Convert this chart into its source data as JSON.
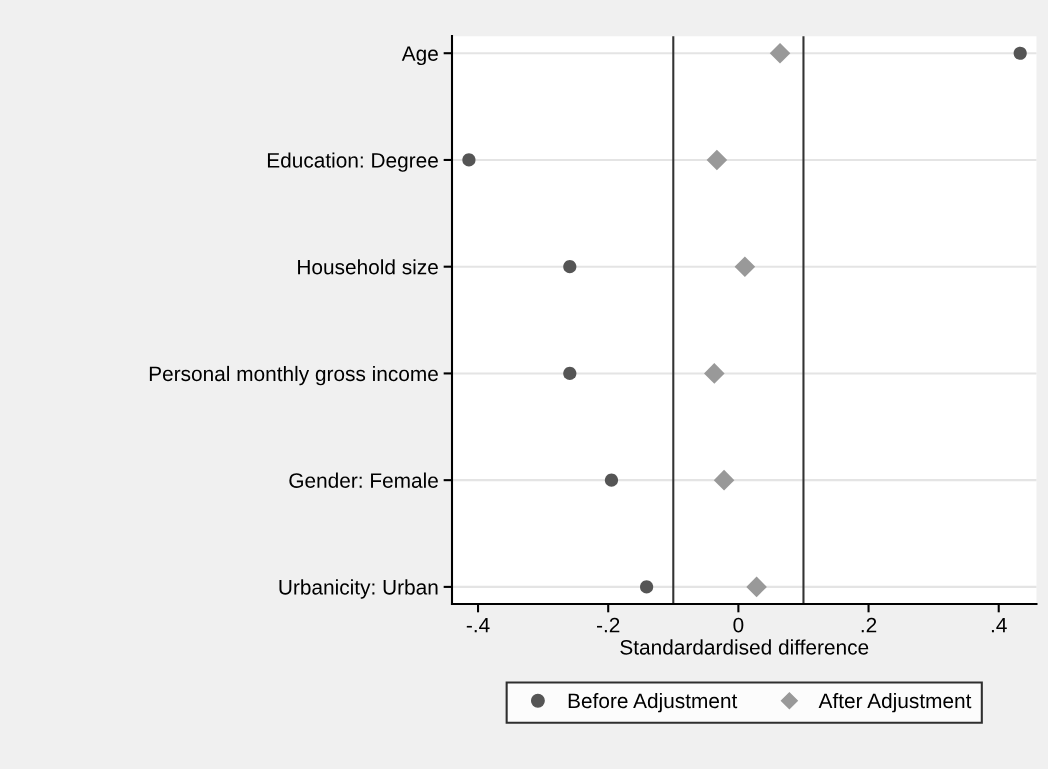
{
  "chart_data": {
    "type": "scatter",
    "orientation": "horizontal",
    "xlabel": "Standardardised difference",
    "categories": [
      "Age",
      "Education: Degree",
      "Household size",
      "Personal monthly gross income",
      "Gender: Female",
      "Urbanicity: Urban"
    ],
    "series": [
      {
        "name": "Before Adjustment",
        "color": "#555555",
        "marker": "circle",
        "values": [
          0.433,
          -0.414,
          -0.259,
          -0.259,
          -0.195,
          -0.141
        ]
      },
      {
        "name": "After Adjustment",
        "color": "#999999",
        "marker": "diamond",
        "values": [
          0.064,
          -0.033,
          0.01,
          -0.037,
          -0.022,
          0.028
        ]
      }
    ],
    "xlim": [
      -0.44,
      0.458
    ],
    "xticks": [
      {
        "value": -0.4,
        "label": "-.4"
      },
      {
        "value": -0.2,
        "label": "-.2"
      },
      0,
      {
        "value": 0.2,
        "label": ".2"
      },
      {
        "value": 0.4,
        "label": ".4"
      }
    ],
    "ref_lines": [
      {
        "axis": "x",
        "value": -0.1,
        "color": "#333333"
      },
      {
        "axis": "x",
        "value": 0.1,
        "color": "#333333"
      }
    ],
    "grid": "y",
    "legend": "bottom"
  }
}
